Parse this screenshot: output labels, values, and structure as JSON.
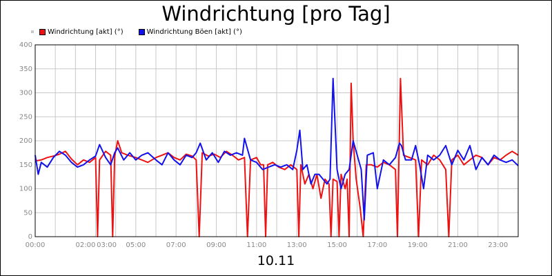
{
  "chart_data": {
    "type": "line",
    "title": "Windrichtung [pro Tag]",
    "xlabel": "10.11",
    "ylabel": "",
    "ylim": [
      0,
      400
    ],
    "yticks": [
      0,
      50,
      100,
      150,
      200,
      250,
      300,
      350,
      400
    ],
    "xlim": [
      0,
      24
    ],
    "xtick_labels": [
      {
        "x": 0,
        "label": "00:00"
      },
      {
        "x": 2.5,
        "label": "02:00"
      },
      {
        "x": 3.55,
        "label": "03:00"
      },
      {
        "x": 5,
        "label": "05:00"
      },
      {
        "x": 7,
        "label": "07:00"
      },
      {
        "x": 9,
        "label": "09:00"
      },
      {
        "x": 11,
        "label": "11:00"
      },
      {
        "x": 13,
        "label": "13:00"
      },
      {
        "x": 15,
        "label": "15:00"
      },
      {
        "x": 17,
        "label": "17:00"
      },
      {
        "x": 19,
        "label": "19:00"
      },
      {
        "x": 21,
        "label": "21:00"
      },
      {
        "x": 23,
        "label": "23:00"
      }
    ],
    "grid": true,
    "legend_position": "top-left",
    "series": [
      {
        "name": "Windrichtung [akt] (°)",
        "color": "#ee1111",
        "points": [
          [
            0,
            158
          ],
          [
            0.3,
            160
          ],
          [
            0.6,
            165
          ],
          [
            0.9,
            168
          ],
          [
            1.2,
            172
          ],
          [
            1.5,
            178
          ],
          [
            1.8,
            162
          ],
          [
            2.1,
            150
          ],
          [
            2.4,
            160
          ],
          [
            2.7,
            155
          ],
          [
            3.0,
            165
          ],
          [
            3.1,
            0
          ],
          [
            3.2,
            160
          ],
          [
            3.5,
            178
          ],
          [
            3.75,
            170
          ],
          [
            3.85,
            0
          ],
          [
            3.95,
            168
          ],
          [
            4.1,
            200
          ],
          [
            4.3,
            175
          ],
          [
            4.6,
            170
          ],
          [
            5.0,
            165
          ],
          [
            5.3,
            160
          ],
          [
            5.6,
            155
          ],
          [
            6.0,
            165
          ],
          [
            6.3,
            170
          ],
          [
            6.6,
            175
          ],
          [
            6.9,
            165
          ],
          [
            7.2,
            160
          ],
          [
            7.5,
            172
          ],
          [
            7.8,
            168
          ],
          [
            8.0,
            160
          ],
          [
            8.15,
            0
          ],
          [
            8.3,
            175
          ],
          [
            8.6,
            168
          ],
          [
            8.9,
            172
          ],
          [
            9.2,
            165
          ],
          [
            9.5,
            178
          ],
          [
            9.8,
            170
          ],
          [
            10.1,
            160
          ],
          [
            10.4,
            165
          ],
          [
            10.55,
            0
          ],
          [
            10.7,
            160
          ],
          [
            11.0,
            165
          ],
          [
            11.2,
            150
          ],
          [
            11.35,
            150
          ],
          [
            11.45,
            0
          ],
          [
            11.55,
            150
          ],
          [
            11.8,
            155
          ],
          [
            12.1,
            145
          ],
          [
            12.4,
            140
          ],
          [
            12.7,
            150
          ],
          [
            13.0,
            140
          ],
          [
            13.1,
            0
          ],
          [
            13.2,
            150
          ],
          [
            13.4,
            110
          ],
          [
            13.6,
            130
          ],
          [
            13.8,
            100
          ],
          [
            14.0,
            130
          ],
          [
            14.2,
            80
          ],
          [
            14.4,
            120
          ],
          [
            14.6,
            110
          ],
          [
            14.7,
            0
          ],
          [
            14.8,
            120
          ],
          [
            15.0,
            115
          ],
          [
            15.1,
            0
          ],
          [
            15.2,
            130
          ],
          [
            15.4,
            100
          ],
          [
            15.5,
            120
          ],
          [
            15.6,
            0
          ],
          [
            15.7,
            320
          ],
          [
            15.8,
            200
          ],
          [
            15.95,
            120
          ],
          [
            16.15,
            60
          ],
          [
            16.3,
            0
          ],
          [
            16.45,
            150
          ],
          [
            16.7,
            150
          ],
          [
            17.0,
            145
          ],
          [
            17.3,
            155
          ],
          [
            17.6,
            150
          ],
          [
            17.9,
            140
          ],
          [
            18.0,
            0
          ],
          [
            18.15,
            330
          ],
          [
            18.3,
            170
          ],
          [
            18.6,
            165
          ],
          [
            18.9,
            160
          ],
          [
            19.05,
            0
          ],
          [
            19.2,
            160
          ],
          [
            19.5,
            150
          ],
          [
            19.8,
            170
          ],
          [
            20.1,
            160
          ],
          [
            20.4,
            140
          ],
          [
            20.55,
            0
          ],
          [
            20.7,
            160
          ],
          [
            21.0,
            170
          ],
          [
            21.3,
            150
          ],
          [
            21.6,
            160
          ],
          [
            21.9,
            170
          ],
          [
            22.2,
            165
          ],
          [
            22.5,
            150
          ],
          [
            22.8,
            165
          ],
          [
            23.1,
            160
          ],
          [
            23.4,
            170
          ],
          [
            23.7,
            178
          ],
          [
            24.0,
            170
          ]
        ]
      },
      {
        "name": "Windrichtung Böen [akt] (°)",
        "color": "#1111ee",
        "points": [
          [
            0,
            170
          ],
          [
            0.15,
            130
          ],
          [
            0.3,
            155
          ],
          [
            0.6,
            145
          ],
          [
            0.9,
            165
          ],
          [
            1.2,
            178
          ],
          [
            1.5,
            170
          ],
          [
            1.8,
            155
          ],
          [
            2.1,
            145
          ],
          [
            2.4,
            150
          ],
          [
            2.7,
            160
          ],
          [
            3.0,
            168
          ],
          [
            3.2,
            192
          ],
          [
            3.5,
            165
          ],
          [
            3.75,
            150
          ],
          [
            3.95,
            175
          ],
          [
            4.1,
            185
          ],
          [
            4.4,
            160
          ],
          [
            4.7,
            175
          ],
          [
            5.0,
            160
          ],
          [
            5.3,
            170
          ],
          [
            5.6,
            175
          ],
          [
            6.0,
            160
          ],
          [
            6.3,
            150
          ],
          [
            6.6,
            175
          ],
          [
            6.9,
            160
          ],
          [
            7.2,
            150
          ],
          [
            7.5,
            170
          ],
          [
            7.8,
            165
          ],
          [
            8.0,
            175
          ],
          [
            8.2,
            195
          ],
          [
            8.5,
            160
          ],
          [
            8.8,
            175
          ],
          [
            9.1,
            155
          ],
          [
            9.4,
            178
          ],
          [
            9.7,
            170
          ],
          [
            10.0,
            175
          ],
          [
            10.3,
            170
          ],
          [
            10.4,
            205
          ],
          [
            10.7,
            160
          ],
          [
            11.0,
            155
          ],
          [
            11.3,
            140
          ],
          [
            11.6,
            145
          ],
          [
            11.9,
            150
          ],
          [
            12.2,
            145
          ],
          [
            12.5,
            150
          ],
          [
            12.8,
            140
          ],
          [
            13.0,
            180
          ],
          [
            13.15,
            222
          ],
          [
            13.3,
            140
          ],
          [
            13.5,
            150
          ],
          [
            13.7,
            110
          ],
          [
            13.9,
            130
          ],
          [
            14.1,
            130
          ],
          [
            14.3,
            120
          ],
          [
            14.5,
            110
          ],
          [
            14.65,
            120
          ],
          [
            14.8,
            330
          ],
          [
            15.0,
            140
          ],
          [
            15.2,
            100
          ],
          [
            15.4,
            130
          ],
          [
            15.6,
            140
          ],
          [
            15.8,
            200
          ],
          [
            16.0,
            170
          ],
          [
            16.2,
            140
          ],
          [
            16.35,
            35
          ],
          [
            16.5,
            170
          ],
          [
            16.8,
            175
          ],
          [
            17.0,
            100
          ],
          [
            17.3,
            160
          ],
          [
            17.6,
            150
          ],
          [
            17.9,
            165
          ],
          [
            18.1,
            195
          ],
          [
            18.2,
            190
          ],
          [
            18.4,
            160
          ],
          [
            18.7,
            160
          ],
          [
            18.9,
            190
          ],
          [
            19.1,
            150
          ],
          [
            19.3,
            100
          ],
          [
            19.5,
            170
          ],
          [
            19.8,
            160
          ],
          [
            20.1,
            170
          ],
          [
            20.4,
            190
          ],
          [
            20.7,
            150
          ],
          [
            21.0,
            180
          ],
          [
            21.3,
            160
          ],
          [
            21.6,
            190
          ],
          [
            21.9,
            140
          ],
          [
            22.2,
            165
          ],
          [
            22.5,
            150
          ],
          [
            22.8,
            170
          ],
          [
            23.1,
            160
          ],
          [
            23.4,
            155
          ],
          [
            23.7,
            160
          ],
          [
            24.0,
            148
          ]
        ]
      }
    ]
  }
}
